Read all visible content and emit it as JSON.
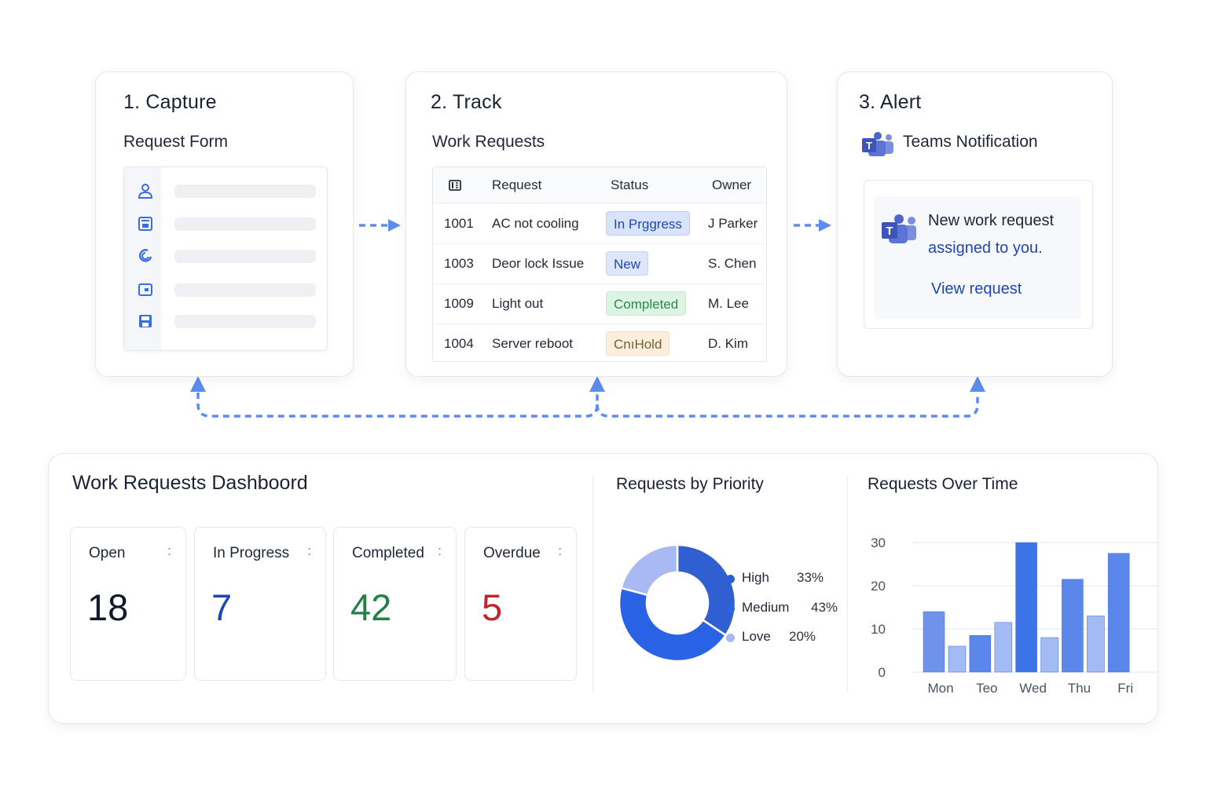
{
  "capture": {
    "step_title": "1. Capture",
    "subtitle": "Request Form",
    "field_icons": [
      "person-icon",
      "form-icon",
      "link-icon",
      "card-icon",
      "save-icon"
    ]
  },
  "track": {
    "step_title": "2. Track",
    "subtitle": "Work Requests",
    "columns": [
      "Request",
      "Status",
      "Owner"
    ],
    "rows": [
      {
        "id": "1001",
        "request": "AC not cooling",
        "status": "In Prggress",
        "status_kind": "in-progress",
        "owner": "J Parker"
      },
      {
        "id": "1003",
        "request": "Deor lock Issue",
        "status": "New",
        "status_kind": "new",
        "owner": "S. Chen"
      },
      {
        "id": "1009",
        "request": "Light out",
        "status": "Completed",
        "status_kind": "completed",
        "owner": "M. Lee"
      },
      {
        "id": "1004",
        "request": "Server reboot",
        "status": "CnıHold",
        "status_kind": "on-hold",
        "owner": "D. Kim"
      }
    ]
  },
  "alert": {
    "step_title": "3. Alert",
    "subtitle": "Teams Notification",
    "message_line1": "New work request",
    "message_line2": "assigned to you.",
    "link": "View request"
  },
  "dashboard": {
    "title": "Work Requests Dashboord",
    "kpis": [
      {
        "label": "Open",
        "value": "18",
        "color": "#111a2c"
      },
      {
        "label": "In Progress",
        "value": "7",
        "color": "#1e47b4"
      },
      {
        "label": "Completed",
        "value": "42",
        "color": "#228047"
      },
      {
        "label": "Overdue",
        "value": "5",
        "color": "#c0272d"
      }
    ],
    "kpi_menu": ":",
    "priority_title": "Requests by Priority",
    "time_title": "Requests Over Time"
  },
  "chart_data": [
    {
      "type": "pie",
      "title": "Requests by Priority",
      "categories": [
        "High",
        "Medium",
        "Love"
      ],
      "values": [
        33,
        43,
        20
      ],
      "value_labels": [
        "33%",
        "43%",
        "20%"
      ],
      "colors": [
        "#2f5fd0",
        "#2a62e6",
        "#a9b9f3"
      ],
      "legend_placement": "right"
    },
    {
      "type": "bar",
      "title": "Requests Over Time",
      "categories": [
        "Mon",
        "Teo",
        "Wed",
        "Thu",
        "Fri"
      ],
      "series": [
        {
          "values": [
            14,
            8.5,
            30,
            21.5,
            27.5
          ]
        },
        {
          "values": [
            6,
            11.5,
            8,
            13,
            null
          ]
        }
      ],
      "yticks": [
        "0",
        "10",
        "20",
        "30"
      ],
      "ylim": [
        0,
        30
      ],
      "grid": true
    }
  ],
  "colors": {
    "accent": "#5b8def",
    "pill_in_progress_bg": "#d9e4fb",
    "pill_new_bg": "#dde7f9",
    "pill_completed_bg": "#ddf3e3",
    "pill_on_hold_bg": "#fbeedb"
  }
}
